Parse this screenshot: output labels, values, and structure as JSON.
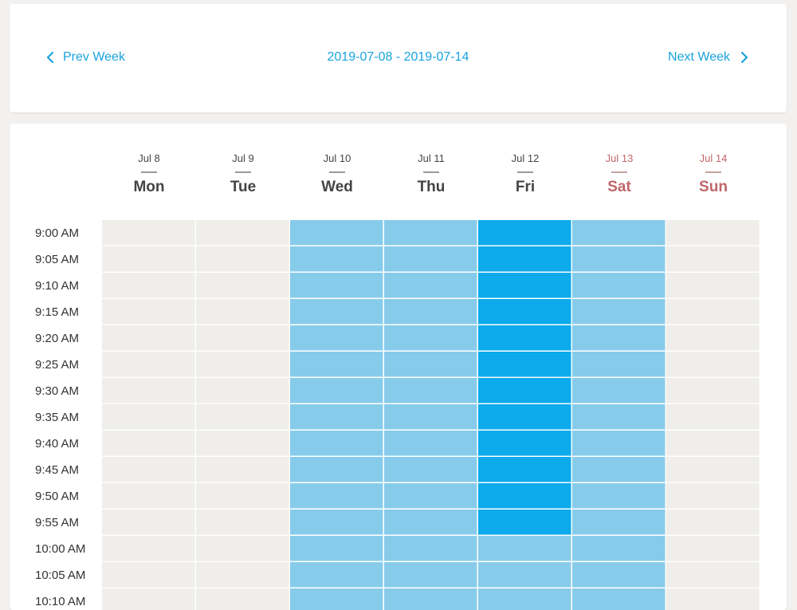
{
  "nav": {
    "prev_label": "Prev Week",
    "next_label": "Next Week",
    "week_range": "2019-07-08 - 2019-07-14"
  },
  "days": [
    {
      "date": "Jul 8",
      "name": "Mon",
      "weekend": false
    },
    {
      "date": "Jul 9",
      "name": "Tue",
      "weekend": false
    },
    {
      "date": "Jul 10",
      "name": "Wed",
      "weekend": false
    },
    {
      "date": "Jul 11",
      "name": "Thu",
      "weekend": false
    },
    {
      "date": "Jul 12",
      "name": "Fri",
      "weekend": false
    },
    {
      "date": "Jul 13",
      "name": "Sat",
      "weekend": true
    },
    {
      "date": "Jul 14",
      "name": "Sun",
      "weekend": true
    }
  ],
  "times": [
    "9:00 AM",
    "9:05 AM",
    "9:10 AM",
    "9:15 AM",
    "9:20 AM",
    "9:25 AM",
    "9:30 AM",
    "9:35 AM",
    "9:40 AM",
    "9:45 AM",
    "9:50 AM",
    "9:55 AM",
    "10:00 AM",
    "10:05 AM",
    "10:10 AM"
  ],
  "availability": [
    [
      "none",
      "none",
      "light",
      "light",
      "full",
      "light",
      "none"
    ],
    [
      "none",
      "none",
      "light",
      "light",
      "full",
      "light",
      "none"
    ],
    [
      "none",
      "none",
      "light",
      "light",
      "full",
      "light",
      "none"
    ],
    [
      "none",
      "none",
      "light",
      "light",
      "full",
      "light",
      "none"
    ],
    [
      "none",
      "none",
      "light",
      "light",
      "full",
      "light",
      "none"
    ],
    [
      "none",
      "none",
      "light",
      "light",
      "full",
      "light",
      "none"
    ],
    [
      "none",
      "none",
      "light",
      "light",
      "full",
      "light",
      "none"
    ],
    [
      "none",
      "none",
      "light",
      "light",
      "full",
      "light",
      "none"
    ],
    [
      "none",
      "none",
      "light",
      "light",
      "full",
      "light",
      "none"
    ],
    [
      "none",
      "none",
      "light",
      "light",
      "full",
      "light",
      "none"
    ],
    [
      "none",
      "none",
      "light",
      "light",
      "full",
      "light",
      "none"
    ],
    [
      "none",
      "none",
      "light",
      "light",
      "full",
      "light",
      "none"
    ],
    [
      "none",
      "none",
      "light",
      "light",
      "light",
      "light",
      "none"
    ],
    [
      "none",
      "none",
      "light",
      "light",
      "light",
      "light",
      "none"
    ],
    [
      "none",
      "none",
      "light",
      "light",
      "light",
      "light",
      "none"
    ]
  ],
  "colors": {
    "accent": "#1aa3df",
    "unavailable": "#efeeea",
    "available_some": "#87cbeb",
    "available_all": "#0dabeb",
    "weekend_text": "#c0666a"
  }
}
